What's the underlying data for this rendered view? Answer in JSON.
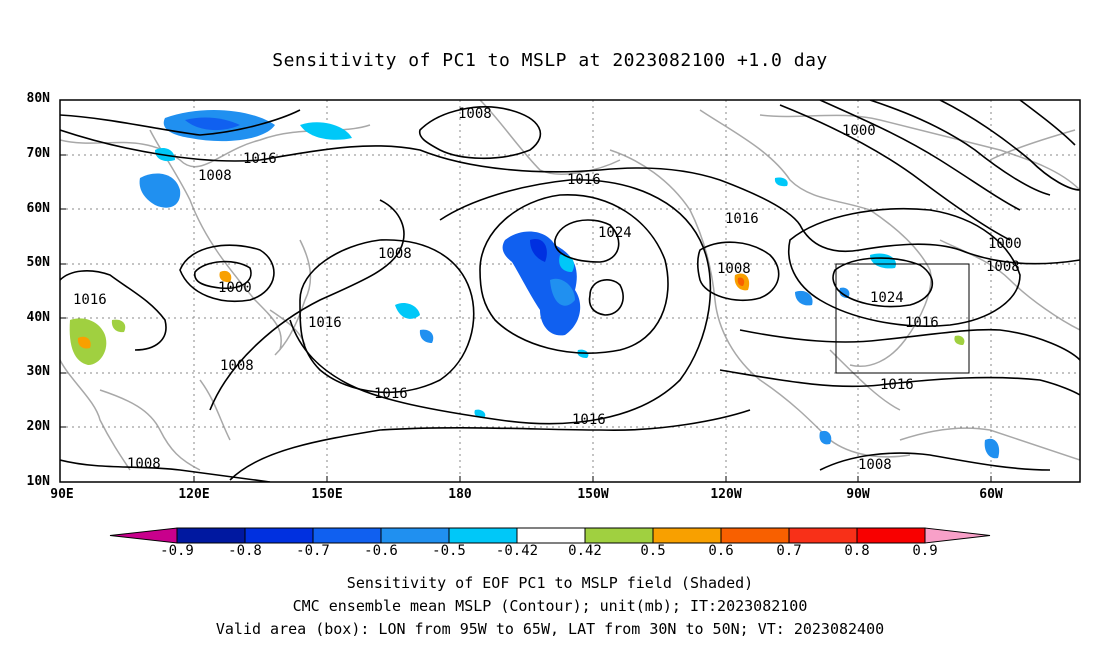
{
  "title": "Sensitivity of PC1 to MSLP at 2023082100 +1.0 day",
  "y_axis_labels": [
    "80N",
    "70N",
    "60N",
    "50N",
    "40N",
    "30N",
    "20N",
    "10N"
  ],
  "x_axis_labels": [
    "90E",
    "120E",
    "150E",
    "180",
    "150W",
    "120W",
    "90W",
    "60W"
  ],
  "contour_labels": [
    "1008",
    "1016",
    "1008",
    "1016",
    "1024",
    "1016",
    "1008",
    "1000",
    "1000",
    "1000",
    "1008",
    "1008",
    "1016",
    "1016",
    "1024",
    "1016",
    "1016",
    "1008",
    "1016",
    "1008",
    "1016",
    "1008"
  ],
  "colorbar": {
    "labels": [
      "-0.9",
      "-0.8",
      "-0.7",
      "-0.6",
      "-0.5",
      "-0.42",
      "0.42",
      "0.5",
      "0.6",
      "0.7",
      "0.8",
      "0.9"
    ],
    "colors": [
      "#c8008c",
      "#0018a0",
      "#0030e0",
      "#1060f0",
      "#2090f0",
      "#00c8f8",
      "#ffffff",
      "#a0d040",
      "#f8a000",
      "#f86000",
      "#f83018",
      "#f80000",
      "#f8a0c8"
    ]
  },
  "footer": {
    "line1": "Sensitivity of EOF PC1 to MSLP field (Shaded)",
    "line2": "CMC ensemble mean MSLP (Contour); unit(mb); IT:2023082100",
    "line3": "Valid area (box): LON from 95W to 65W, LAT from 30N to 50N; VT: 2023082400"
  }
}
